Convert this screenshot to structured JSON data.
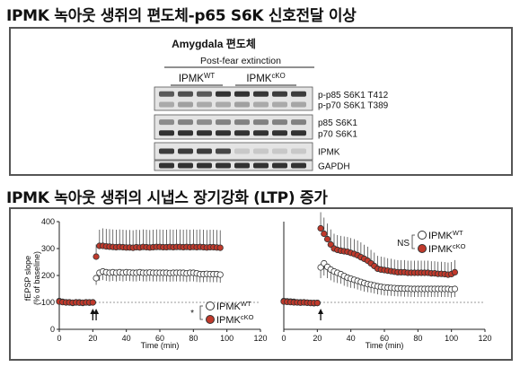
{
  "headings": {
    "top": "IPMK 녹아웃 생쥐의 편도체-p65 S6K 신호전달 이상",
    "bottom": "IPMK 녹아웃 생쥐의 시냅스 장기강화 (LTP) 증가"
  },
  "western_blot": {
    "title": "Amygdala 편도체",
    "condition": "Post-fear extinction",
    "groups": [
      {
        "base": "IPMK",
        "sup": "WT",
        "lanes": 4
      },
      {
        "base": "IPMK",
        "sup": "cKO",
        "lanes": 4
      }
    ],
    "blots": [
      {
        "labels": [
          "p-p85 S6K1 T412",
          "p-p70 S6K1 T389"
        ],
        "intensity": [
          [
            0.7,
            0.75,
            0.7,
            0.9,
            0.9,
            0.88,
            0.85,
            0.85
          ],
          [
            0.3,
            0.35,
            0.3,
            0.3,
            0.35,
            0.3,
            0.3,
            0.32
          ]
        ]
      },
      {
        "labels": [
          "p85 S6K1",
          "p70 S6K1"
        ],
        "intensity": [
          [
            0.45,
            0.5,
            0.45,
            0.5,
            0.5,
            0.5,
            0.5,
            0.5
          ],
          [
            0.9,
            0.9,
            0.9,
            0.9,
            0.9,
            0.9,
            0.9,
            0.9
          ]
        ]
      },
      {
        "labels": [
          "IPMK"
        ],
        "intensity": [
          [
            0.85,
            0.85,
            0.85,
            0.8,
            0.15,
            0.15,
            0.15,
            0.15
          ]
        ]
      },
      {
        "labels": [
          "GAPDH"
        ],
        "intensity": [
          [
            0.9,
            0.9,
            0.9,
            0.9,
            0.9,
            0.9,
            0.9,
            0.9
          ]
        ]
      }
    ]
  },
  "legend_labels": {
    "wt": {
      "base": "IPMK",
      "sup": "WT"
    },
    "cko": {
      "base": "IPMK",
      "sup": "cKO"
    }
  },
  "colors": {
    "wt_fill": "#ffffff",
    "cko_fill": "#c0392b",
    "marker_stroke": "#333333",
    "box_border": "#555555"
  },
  "chart_data": [
    {
      "type": "scatter",
      "title": "",
      "xlabel": "Time (min)",
      "ylabel": "fEPSP slope (% of baseline)",
      "xlim": [
        0,
        120
      ],
      "ylim": [
        0,
        400
      ],
      "xticks": [
        0,
        20,
        40,
        60,
        80,
        100,
        120
      ],
      "yticks": [
        0,
        100,
        200,
        300,
        400
      ],
      "baseline": 100,
      "stimulus_arrows_at": [
        20,
        22
      ],
      "significance": "*",
      "legend_position": "bottom-right",
      "series": [
        {
          "name": "IPMKWT",
          "x": [
            0,
            2,
            4,
            6,
            8,
            10,
            12,
            14,
            16,
            18,
            20,
            22,
            24,
            26,
            28,
            30,
            32,
            34,
            36,
            38,
            40,
            42,
            44,
            46,
            48,
            50,
            52,
            54,
            56,
            58,
            60,
            62,
            64,
            66,
            68,
            70,
            72,
            74,
            76,
            78,
            80,
            82,
            84,
            86,
            88,
            90,
            92,
            94,
            96
          ],
          "y": [
            105,
            102,
            100,
            100,
            98,
            100,
            100,
            98,
            100,
            99,
            100,
            190,
            210,
            215,
            212,
            210,
            212,
            210,
            212,
            210,
            212,
            211,
            210,
            210,
            212,
            210,
            210,
            211,
            210,
            210,
            210,
            210,
            210,
            209,
            210,
            210,
            210,
            210,
            208,
            210,
            210,
            208,
            205,
            205,
            206,
            205,
            205,
            205,
            203
          ],
          "err": [
            8,
            6,
            6,
            6,
            6,
            6,
            6,
            6,
            6,
            6,
            6,
            25,
            30,
            32,
            32,
            32,
            32,
            32,
            32,
            32,
            32,
            32,
            32,
            32,
            32,
            32,
            32,
            32,
            32,
            32,
            32,
            32,
            32,
            32,
            32,
            32,
            32,
            32,
            32,
            32,
            32,
            32,
            30,
            30,
            30,
            30,
            30,
            30,
            30
          ]
        },
        {
          "name": "IPMKcKO",
          "x": [
            0,
            2,
            4,
            6,
            8,
            10,
            12,
            14,
            16,
            18,
            20,
            22,
            24,
            26,
            28,
            30,
            32,
            34,
            36,
            38,
            40,
            42,
            44,
            46,
            48,
            50,
            52,
            54,
            56,
            58,
            60,
            62,
            64,
            66,
            68,
            70,
            72,
            74,
            76,
            78,
            80,
            82,
            84,
            86,
            88,
            90,
            92,
            94,
            96
          ],
          "y": [
            103,
            101,
            100,
            100,
            99,
            100,
            99,
            99,
            100,
            100,
            100,
            270,
            310,
            310,
            308,
            307,
            306,
            305,
            306,
            305,
            304,
            304,
            303,
            305,
            304,
            306,
            305,
            304,
            305,
            306,
            306,
            305,
            305,
            306,
            305,
            306,
            306,
            305,
            306,
            305,
            306,
            305,
            306,
            305,
            304,
            305,
            305,
            304,
            303
          ],
          "err": [
            6,
            5,
            5,
            5,
            5,
            5,
            5,
            5,
            5,
            5,
            5,
            45,
            60,
            65,
            65,
            65,
            65,
            65,
            65,
            65,
            65,
            65,
            65,
            65,
            65,
            65,
            65,
            65,
            65,
            65,
            65,
            65,
            65,
            65,
            65,
            65,
            65,
            65,
            65,
            65,
            65,
            65,
            65,
            65,
            65,
            65,
            65,
            65,
            65
          ]
        }
      ]
    },
    {
      "type": "scatter",
      "title": "",
      "xlabel": "Time (min)",
      "ylabel": "",
      "xlim": [
        0,
        120
      ],
      "ylim": [
        0,
        400
      ],
      "xticks": [
        0,
        20,
        40,
        60,
        80,
        100,
        120
      ],
      "yticks": [],
      "baseline": 100,
      "stimulus_arrows_at": [
        22
      ],
      "significance": "NS",
      "legend_position": "top-right",
      "series": [
        {
          "name": "IPMKWT",
          "x": [
            0,
            2,
            4,
            6,
            8,
            10,
            12,
            14,
            16,
            18,
            20,
            22,
            24,
            26,
            28,
            30,
            32,
            34,
            36,
            38,
            40,
            42,
            44,
            46,
            48,
            50,
            52,
            54,
            56,
            58,
            60,
            62,
            64,
            66,
            68,
            70,
            72,
            74,
            76,
            78,
            80,
            82,
            84,
            86,
            88,
            90,
            92,
            94,
            96,
            98,
            100,
            102
          ],
          "y": [
            105,
            104,
            103,
            102,
            100,
            100,
            100,
            99,
            98,
            97,
            98,
            230,
            245,
            232,
            222,
            215,
            210,
            205,
            198,
            192,
            188,
            184,
            180,
            176,
            172,
            168,
            166,
            163,
            160,
            158,
            156,
            155,
            154,
            153,
            152,
            152,
            151,
            151,
            150,
            150,
            150,
            150,
            150,
            150,
            150,
            150,
            150,
            150,
            150,
            150,
            148,
            150
          ],
          "err": [
            8,
            7,
            7,
            7,
            7,
            7,
            7,
            7,
            7,
            7,
            7,
            40,
            45,
            42,
            40,
            40,
            38,
            36,
            36,
            34,
            34,
            32,
            32,
            32,
            32,
            30,
            30,
            30,
            30,
            30,
            30,
            30,
            30,
            30,
            30,
            30,
            30,
            30,
            30,
            30,
            30,
            30,
            30,
            30,
            30,
            30,
            30,
            30,
            30,
            30,
            30,
            30
          ]
        },
        {
          "name": "IPMKcKO",
          "x": [
            0,
            2,
            4,
            6,
            8,
            10,
            12,
            14,
            16,
            18,
            20,
            22,
            24,
            26,
            28,
            30,
            32,
            34,
            36,
            38,
            40,
            42,
            44,
            46,
            48,
            50,
            52,
            54,
            56,
            58,
            60,
            62,
            64,
            66,
            68,
            70,
            72,
            74,
            76,
            78,
            80,
            82,
            84,
            86,
            88,
            90,
            92,
            94,
            96,
            98,
            100,
            102
          ],
          "y": [
            103,
            102,
            101,
            100,
            100,
            99,
            100,
            99,
            98,
            98,
            98,
            375,
            355,
            335,
            315,
            300,
            295,
            292,
            290,
            288,
            284,
            280,
            275,
            268,
            262,
            255,
            245,
            235,
            225,
            222,
            220,
            218,
            216,
            214,
            212,
            212,
            212,
            210,
            210,
            210,
            210,
            210,
            210,
            210,
            208,
            208,
            206,
            206,
            205,
            203,
            205,
            212
          ],
          "err": [
            6,
            6,
            6,
            6,
            6,
            6,
            6,
            6,
            6,
            6,
            6,
            60,
            60,
            58,
            56,
            55,
            55,
            55,
            55,
            55,
            55,
            55,
            55,
            55,
            52,
            52,
            50,
            50,
            48,
            48,
            48,
            46,
            46,
            45,
            45,
            45,
            45,
            45,
            45,
            45,
            45,
            45,
            45,
            45,
            45,
            45,
            45,
            45,
            45,
            45,
            45,
            45
          ]
        }
      ]
    }
  ]
}
